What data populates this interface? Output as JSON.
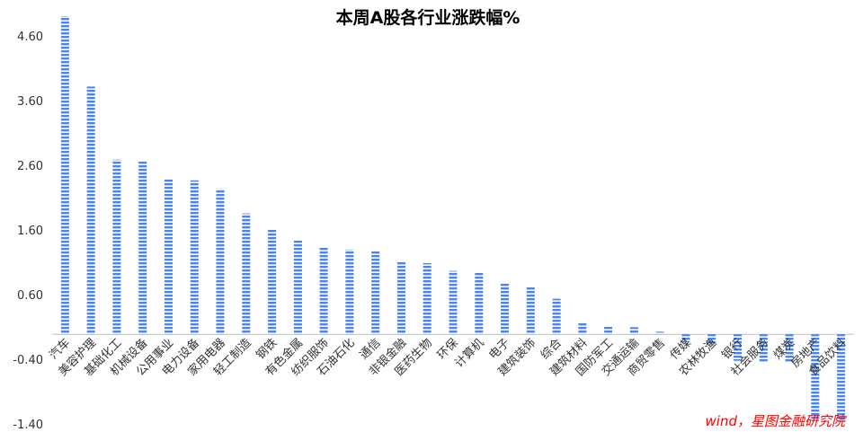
{
  "chart_data": {
    "type": "bar",
    "title": "本周A股各行业涨跌幅%",
    "xlabel": "",
    "ylabel": "",
    "ylim": [
      -1.4,
      5.0
    ],
    "yticks": [
      "4.60",
      "3.60",
      "2.60",
      "1.60",
      "0.60",
      "-0.40",
      "-1.40"
    ],
    "ytick_values": [
      4.6,
      3.6,
      2.6,
      1.6,
      0.6,
      -0.4,
      -1.4
    ],
    "grid": false,
    "legend": "none",
    "bar_color": "#4a86e8",
    "categories": [
      "汽车",
      "美容护理",
      "基础化工",
      "机械设备",
      "公用事业",
      "电力设备",
      "家用电器",
      "轻工制造",
      "钢铁",
      "有色金属",
      "纺织服饰",
      "石油石化",
      "通信",
      "非银金融",
      "医药生物",
      "环保",
      "计算机",
      "电子",
      "建筑装饰",
      "综合",
      "建筑材料",
      "国防军工",
      "交通运输",
      "商贸零售",
      "传媒",
      "农林牧渔",
      "银行",
      "社会服务",
      "煤炭",
      "房地产",
      "食品饮料"
    ],
    "values": [
      4.92,
      3.83,
      2.7,
      2.69,
      2.41,
      2.38,
      2.25,
      1.87,
      1.62,
      1.46,
      1.34,
      1.31,
      1.29,
      1.13,
      1.1,
      0.98,
      0.96,
      0.8,
      0.74,
      0.55,
      0.18,
      0.12,
      0.11,
      0.04,
      -0.12,
      -0.17,
      -0.41,
      -0.42,
      -0.44,
      -1.33,
      -1.34
    ]
  },
  "source": "wind，星图金融研究院"
}
